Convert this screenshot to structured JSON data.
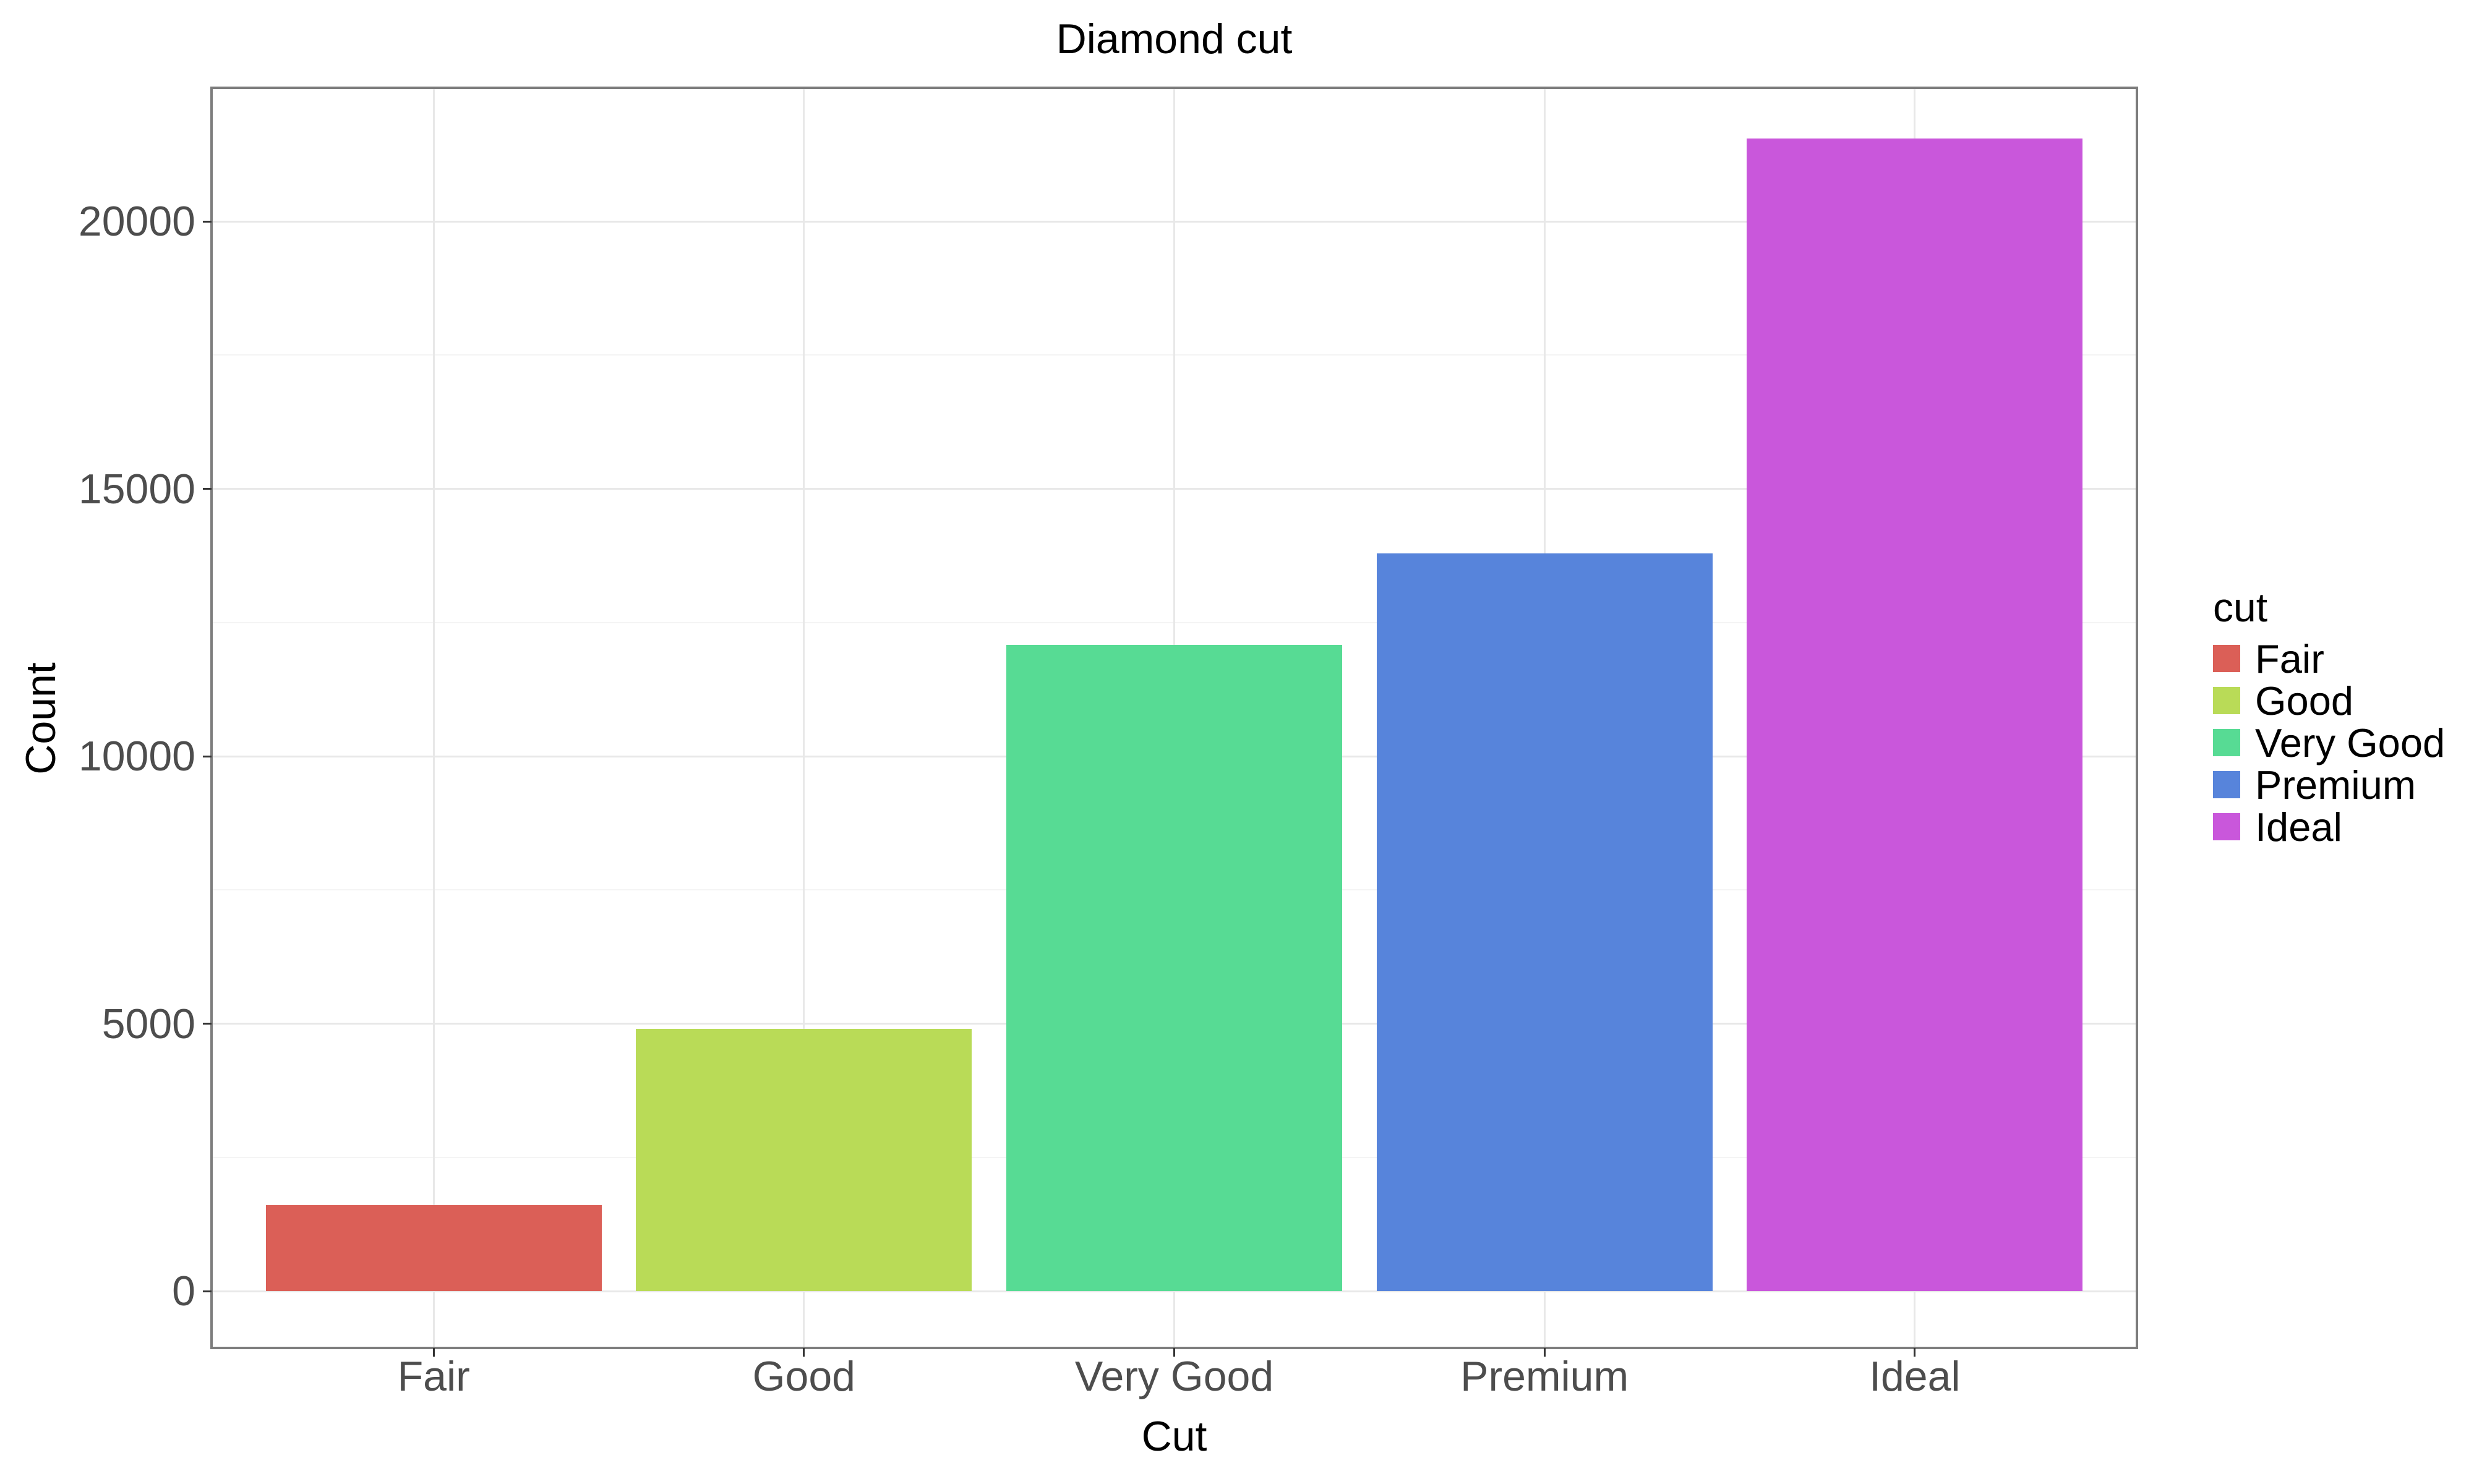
{
  "title": "Diamond cut",
  "chart_data": {
    "type": "bar",
    "title": "Diamond cut",
    "xlabel": "Cut",
    "ylabel": "Count",
    "categories": [
      "Fair",
      "Good",
      "Very Good",
      "Premium",
      "Ideal"
    ],
    "values": [
      1610,
      4906,
      12082,
      13791,
      21551
    ],
    "colors": [
      "#db5f57",
      "#b9db57",
      "#57db94",
      "#5784db",
      "#c957db"
    ],
    "ylim": [
      0,
      22500
    ],
    "yticks": [
      0,
      5000,
      10000,
      15000,
      20000
    ],
    "yticks_minor": [
      2500,
      7500,
      12500,
      17500
    ],
    "grid": "major-and-minor-horizontal, major-vertical",
    "legend": {
      "title": "cut",
      "entries": [
        "Fair",
        "Good",
        "Very Good",
        "Premium",
        "Ideal"
      ],
      "position": "right"
    }
  },
  "colors": {
    "background": "#ffffff",
    "panel_border": "#7d7d7d",
    "grid_major": "#e8e8e8",
    "grid_minor": "#f4f4f4",
    "tick_mark": "#333333",
    "tick_label": "#4d4d4d",
    "text": "#000000"
  }
}
